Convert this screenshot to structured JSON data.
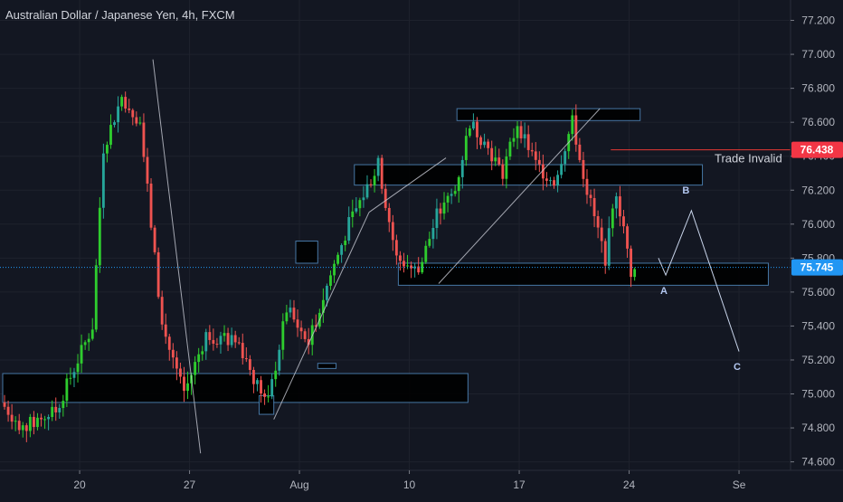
{
  "header": {
    "title": "Australian Dollar / Japanese Yen, 4h, FXCM"
  },
  "colors": {
    "background": "#131722",
    "up_candle": "#26a69a",
    "up_candle_bright": "#2ecc2e",
    "down_candle": "#ef5350",
    "zone_stroke": "#5b9bd5",
    "zone_fill": "#000000",
    "trendline": "#c8cbd4",
    "invalid_line": "#e53935",
    "current_price_bg": "#2196f3",
    "invalid_badge_bg": "#f23645",
    "grid": "#1e222d",
    "wave_label": "#b3c7f0"
  },
  "price_axis": {
    "ticks": [
      "77.200",
      "77.000",
      "76.800",
      "76.600",
      "76.400",
      "76.200",
      "76.000",
      "75.800",
      "75.600",
      "75.400",
      "75.200",
      "75.000",
      "74.800",
      "74.600"
    ],
    "range": [
      74.55,
      77.32
    ],
    "current_price": "75.745",
    "invalid_price": "76.438"
  },
  "time_axis": {
    "labels": [
      {
        "text": "20",
        "bar": 21
      },
      {
        "text": "27",
        "bar": 51
      },
      {
        "text": "Aug",
        "bar": 81
      },
      {
        "text": "10",
        "bar": 111
      },
      {
        "text": "17",
        "bar": 141
      },
      {
        "text": "24",
        "bar": 171
      },
      {
        "text": "Se",
        "bar": 201
      }
    ]
  },
  "annotations": {
    "trade_invalid": "Trade Invalid",
    "wave_a": "A",
    "wave_b": "B",
    "wave_c": "C"
  },
  "chart_data": {
    "type": "candlestick",
    "title": "Australian Dollar / Japanese Yen, 4h, FXCM",
    "timeframe": "4h",
    "ylim": [
      74.55,
      77.32
    ],
    "key_points": [
      {
        "bar": 0,
        "price": 74.95
      },
      {
        "bar": 6,
        "price": 74.8
      },
      {
        "bar": 15,
        "price": 74.9
      },
      {
        "bar": 25,
        "price": 75.4
      },
      {
        "bar": 28,
        "price": 76.45
      },
      {
        "bar": 33,
        "price": 76.75
      },
      {
        "bar": 38,
        "price": 76.6
      },
      {
        "bar": 44,
        "price": 75.4
      },
      {
        "bar": 50,
        "price": 75.0
      },
      {
        "bar": 56,
        "price": 75.35
      },
      {
        "bar": 65,
        "price": 75.3
      },
      {
        "bar": 70,
        "price": 75.05
      },
      {
        "bar": 73,
        "price": 74.95
      },
      {
        "bar": 78,
        "price": 75.5
      },
      {
        "bar": 84,
        "price": 75.3
      },
      {
        "bar": 90,
        "price": 75.7
      },
      {
        "bar": 95,
        "price": 76.0
      },
      {
        "bar": 103,
        "price": 76.35
      },
      {
        "bar": 108,
        "price": 75.8
      },
      {
        "bar": 114,
        "price": 75.72
      },
      {
        "bar": 119,
        "price": 76.05
      },
      {
        "bar": 124,
        "price": 76.2
      },
      {
        "bar": 128,
        "price": 76.6
      },
      {
        "bar": 133,
        "price": 76.45
      },
      {
        "bar": 137,
        "price": 76.3
      },
      {
        "bar": 141,
        "price": 76.6
      },
      {
        "bar": 146,
        "price": 76.35
      },
      {
        "bar": 151,
        "price": 76.25
      },
      {
        "bar": 156,
        "price": 76.6
      },
      {
        "bar": 160,
        "price": 76.2
      },
      {
        "bar": 165,
        "price": 75.8
      },
      {
        "bar": 168,
        "price": 76.2
      },
      {
        "bar": 172,
        "price": 75.72
      }
    ],
    "zones": [
      {
        "from_bar": 0,
        "to_bar": 127,
        "top": 75.12,
        "bottom": 74.95
      },
      {
        "from_bar": 96,
        "to_bar": 191,
        "top": 76.35,
        "bottom": 76.23
      },
      {
        "from_bar": 124,
        "to_bar": 174,
        "top": 76.68,
        "bottom": 76.61
      },
      {
        "from_bar": 108,
        "to_bar": 209,
        "top": 75.77,
        "bottom": 75.64
      },
      {
        "from_bar": 80,
        "to_bar": 86,
        "top": 75.9,
        "bottom": 75.77
      },
      {
        "from_bar": 70,
        "to_bar": 74,
        "top": 74.99,
        "bottom": 74.88
      },
      {
        "from_bar": 86,
        "to_bar": 91,
        "top": 75.18,
        "bottom": 75.15
      }
    ],
    "trendlines": [
      {
        "from": [
          41,
          76.97
        ],
        "to": [
          54,
          74.65
        ]
      },
      {
        "from": [
          74,
          74.85
        ],
        "to": [
          100,
          76.07
        ]
      },
      {
        "from": [
          100,
          76.07
        ],
        "to": [
          121,
          76.39
        ]
      },
      {
        "from": [
          119,
          75.65
        ],
        "to": [
          163,
          76.68
        ]
      }
    ],
    "projection": [
      {
        "bar": 179,
        "price": 75.8
      },
      {
        "bar": 181,
        "price": 75.7
      },
      {
        "bar": 188,
        "price": 76.08
      },
      {
        "bar": 201,
        "price": 75.25
      }
    ],
    "invalid_level": {
      "price": 76.438,
      "from_bar": 166
    },
    "current_price": 75.745
  }
}
